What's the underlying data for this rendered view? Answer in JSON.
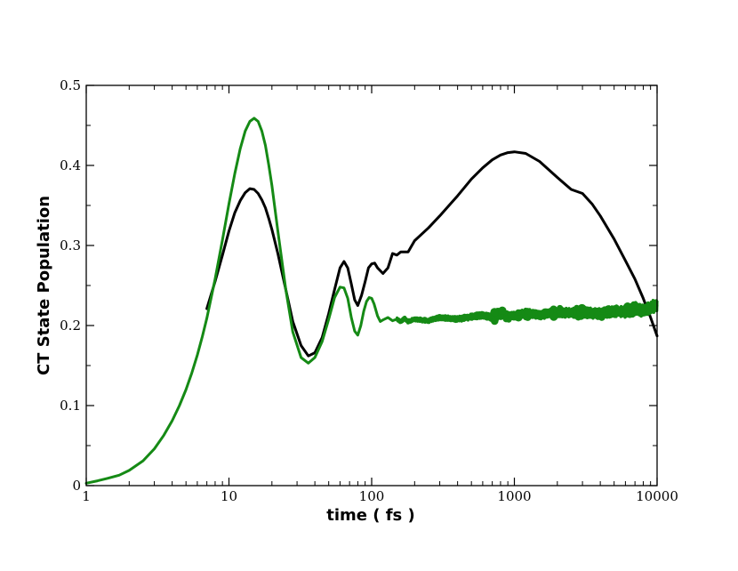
{
  "chart_data": {
    "type": "line",
    "xlabel": "time ( fs )",
    "ylabel": "CT State Population",
    "xscale": "log",
    "xlim": [
      1,
      10000
    ],
    "ylim": [
      0,
      0.5
    ],
    "xticks": [
      1,
      10,
      100,
      1000,
      10000
    ],
    "xtick_labels": [
      "1",
      "10",
      "100",
      "1000",
      "10000"
    ],
    "yticks": [
      0,
      0.1,
      0.2,
      0.3,
      0.4,
      0.5
    ],
    "ytick_labels": [
      "0",
      "0.1",
      "0.2",
      "0.3",
      "0.4",
      "0.5"
    ],
    "grid": false,
    "series": [
      {
        "color": "#000000",
        "x": [
          7,
          8,
          9,
          10,
          11,
          12,
          13,
          14,
          15,
          16,
          17,
          18,
          19,
          20,
          22,
          25,
          28,
          32,
          36,
          40,
          45,
          50,
          55,
          60,
          64,
          68,
          72,
          76,
          80,
          85,
          90,
          95,
          100,
          105,
          110,
          120,
          130,
          140,
          150,
          160,
          180,
          200,
          250,
          300,
          400,
          500,
          600,
          700,
          800,
          900,
          1000,
          1200,
          1500,
          2000,
          2500,
          3000,
          3500,
          4000,
          5000,
          6000,
          7000,
          8000,
          9000,
          10000
        ],
        "y": [
          0.221,
          0.255,
          0.288,
          0.318,
          0.341,
          0.356,
          0.366,
          0.371,
          0.37,
          0.365,
          0.357,
          0.347,
          0.334,
          0.32,
          0.29,
          0.245,
          0.205,
          0.175,
          0.162,
          0.166,
          0.185,
          0.215,
          0.245,
          0.272,
          0.28,
          0.272,
          0.252,
          0.232,
          0.225,
          0.238,
          0.255,
          0.272,
          0.277,
          0.278,
          0.272,
          0.265,
          0.272,
          0.29,
          0.288,
          0.292,
          0.292,
          0.306,
          0.322,
          0.337,
          0.362,
          0.383,
          0.397,
          0.407,
          0.413,
          0.416,
          0.417,
          0.415,
          0.405,
          0.385,
          0.37,
          0.365,
          0.352,
          0.337,
          0.308,
          0.281,
          0.258,
          0.234,
          0.21,
          0.187
        ]
      },
      {
        "color": "#158a15",
        "x": [
          1,
          1.2,
          1.4,
          1.7,
          2,
          2.5,
          3,
          3.5,
          4,
          4.5,
          5,
          5.5,
          6,
          6.5,
          7,
          8,
          9,
          10,
          11,
          12,
          13,
          14,
          15,
          16,
          17,
          18,
          19,
          20,
          22,
          25,
          28,
          32,
          36,
          40,
          45,
          50,
          55,
          60,
          64,
          68,
          72,
          76,
          80,
          84,
          88,
          92,
          96,
          100,
          104,
          110,
          115,
          120,
          130,
          140,
          150,
          160,
          170,
          180,
          200,
          250,
          300,
          400,
          500,
          600,
          700,
          800,
          1000,
          1200,
          1500,
          2000,
          3000,
          4000,
          5000,
          6000,
          7000,
          8000,
          9000,
          10000
        ],
        "y": [
          0.003,
          0.006,
          0.009,
          0.013,
          0.019,
          0.031,
          0.046,
          0.063,
          0.081,
          0.1,
          0.12,
          0.141,
          0.163,
          0.186,
          0.209,
          0.258,
          0.307,
          0.352,
          0.39,
          0.421,
          0.443,
          0.455,
          0.459,
          0.455,
          0.443,
          0.425,
          0.401,
          0.375,
          0.318,
          0.245,
          0.192,
          0.16,
          0.153,
          0.16,
          0.18,
          0.208,
          0.235,
          0.248,
          0.247,
          0.234,
          0.21,
          0.193,
          0.188,
          0.2,
          0.218,
          0.23,
          0.235,
          0.234,
          0.227,
          0.212,
          0.205,
          0.207,
          0.21,
          0.206,
          0.208,
          0.205,
          0.209,
          0.205,
          0.208,
          0.206,
          0.21,
          0.208,
          0.211,
          0.213,
          0.21,
          0.214,
          0.212,
          0.216,
          0.213,
          0.216,
          0.216,
          0.215,
          0.218,
          0.217,
          0.222,
          0.218,
          0.223,
          0.225
        ]
      }
    ]
  }
}
